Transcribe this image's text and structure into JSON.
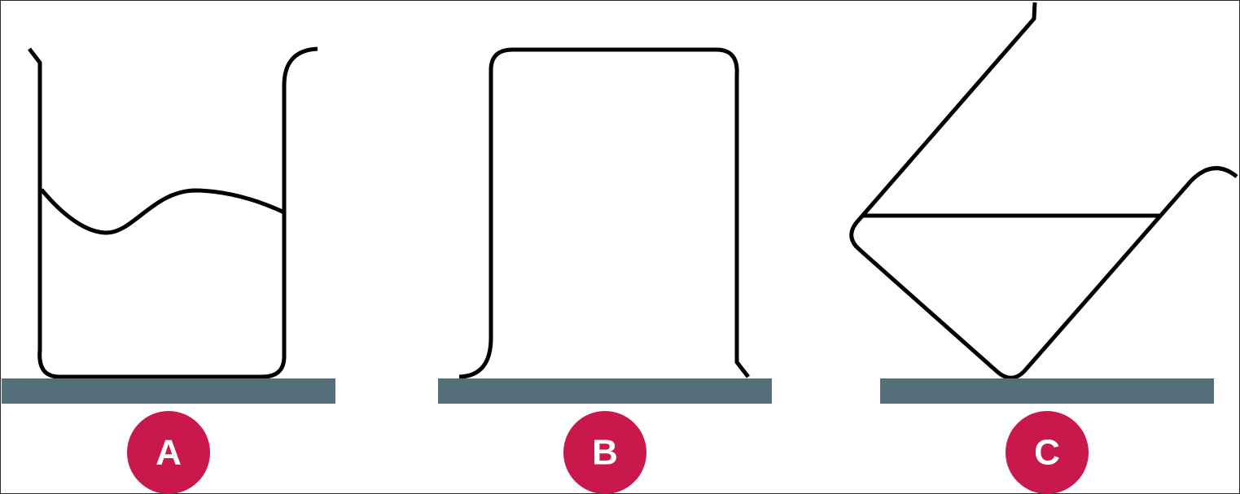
{
  "panels": [
    {
      "id": "A",
      "label": "A"
    },
    {
      "id": "B",
      "label": "B"
    },
    {
      "id": "C",
      "label": "C"
    }
  ],
  "colors": {
    "outline": "#000000",
    "surface": "#546e7a",
    "badge": "#c8184c",
    "badge_text": "#ffffff",
    "background": "#ffffff"
  }
}
